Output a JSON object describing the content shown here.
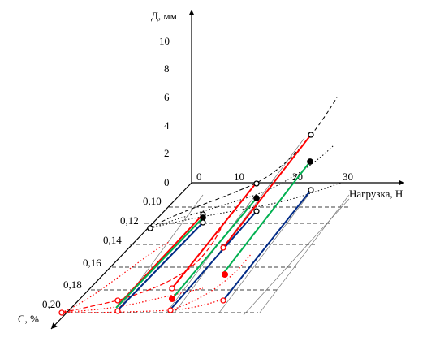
{
  "chart_data": {
    "type": "line",
    "subtype": "3d-oblique",
    "axes": {
      "vertical": {
        "label": "Д, мм",
        "ticks": [
          "0",
          "2",
          "4",
          "6",
          "8",
          "10"
        ]
      },
      "horizontal": {
        "label": "Нагрузка, Н",
        "ticks": [
          "0",
          "10",
          "20",
          "30"
        ]
      },
      "depth": {
        "label": "С, %",
        "ticks": [
          "0,10",
          "0,12",
          "0,14",
          "0,16",
          "0,18",
          "0,20"
        ]
      }
    },
    "series_colors": {
      "red": "#ff0000",
      "green": "#00b050",
      "blue": "#002a86",
      "black": "#000000"
    },
    "grid": "dashed depth-level lines",
    "legend": "none"
  }
}
